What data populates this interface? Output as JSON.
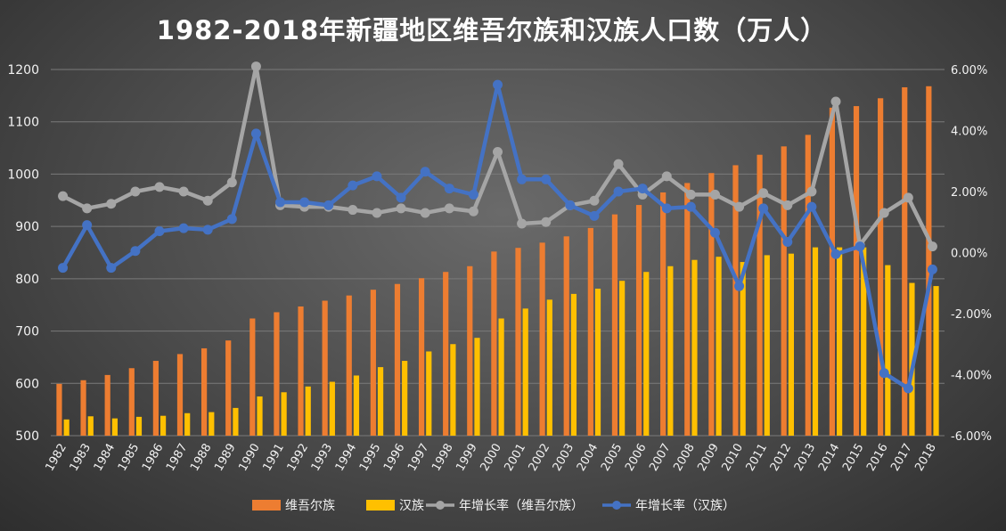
{
  "chart_data": {
    "type": "bar",
    "title": "1982-2018年新疆地区维吾尔族和汉族人口数（万人）",
    "categories": [
      "1982",
      "1983",
      "1984",
      "1985",
      "1986",
      "1987",
      "1988",
      "1989",
      "1990",
      "1991",
      "1992",
      "1993",
      "1994",
      "1995",
      "1996",
      "1997",
      "1998",
      "1999",
      "2000",
      "2001",
      "2002",
      "2003",
      "2004",
      "2005",
      "2006",
      "2007",
      "2008",
      "2009",
      "2010",
      "2011",
      "2012",
      "2013",
      "2014",
      "2015",
      "2016",
      "2017",
      "2018"
    ],
    "y_left": {
      "ylim": [
        500,
        1200
      ],
      "ticks": [
        500,
        600,
        700,
        800,
        900,
        1000,
        1100,
        1200
      ]
    },
    "y_right": {
      "ylim": [
        -6,
        6
      ],
      "ticks": [
        "-6.00%",
        "-4.00%",
        "-2.00%",
        "0.00%",
        "2.00%",
        "4.00%",
        "6.00%"
      ]
    },
    "grid": true,
    "legend_position": "bottom",
    "series": [
      {
        "name": "维吾尔族",
        "type": "bar",
        "axis": "left",
        "color": "#ED7D31",
        "values": [
          599,
          606,
          616,
          629,
          643,
          656,
          667,
          682,
          724,
          736,
          747,
          758,
          768,
          779,
          790,
          801,
          813,
          824,
          852,
          859,
          869,
          881,
          897,
          923,
          941,
          965,
          983,
          1002,
          1017,
          1037,
          1053,
          1075,
          1127,
          1130,
          1145,
          1166,
          1168
        ]
      },
      {
        "name": "汉族",
        "type": "bar",
        "axis": "left",
        "color": "#FFC000",
        "values": [
          531,
          537,
          533,
          536,
          538,
          543,
          545,
          553,
          575,
          583,
          594,
          603,
          615,
          631,
          643,
          661,
          675,
          687,
          724,
          743,
          760,
          771,
          781,
          796,
          813,
          824,
          836,
          842,
          832,
          845,
          848,
          860,
          860,
          860,
          826,
          792,
          786
        ]
      },
      {
        "name": "年增长率（维吾尔族）",
        "type": "line",
        "axis": "right",
        "color": "#A5A5A5",
        "values": [
          1.85,
          1.45,
          1.6,
          2.0,
          2.15,
          2.0,
          1.7,
          2.3,
          6.1,
          1.55,
          1.5,
          1.5,
          1.4,
          1.3,
          1.45,
          1.3,
          1.45,
          1.35,
          3.3,
          0.95,
          1.0,
          1.55,
          1.7,
          2.9,
          1.9,
          2.5,
          1.9,
          1.9,
          1.5,
          1.95,
          1.55,
          2.0,
          4.95,
          0.25,
          1.3,
          1.8,
          0.2
        ]
      },
      {
        "name": "年增长率（汉族）",
        "type": "line",
        "axis": "right",
        "color": "#4472C4",
        "values": [
          -0.5,
          0.9,
          -0.5,
          0.05,
          0.7,
          0.8,
          0.75,
          1.1,
          3.9,
          1.65,
          1.65,
          1.55,
          2.2,
          2.5,
          1.8,
          2.65,
          2.1,
          1.9,
          5.5,
          2.4,
          2.4,
          1.55,
          1.2,
          2.0,
          2.1,
          1.45,
          1.5,
          0.65,
          -1.1,
          1.45,
          0.35,
          1.5,
          -0.05,
          0.2,
          -3.95,
          -4.45,
          -0.55
        ]
      }
    ]
  }
}
